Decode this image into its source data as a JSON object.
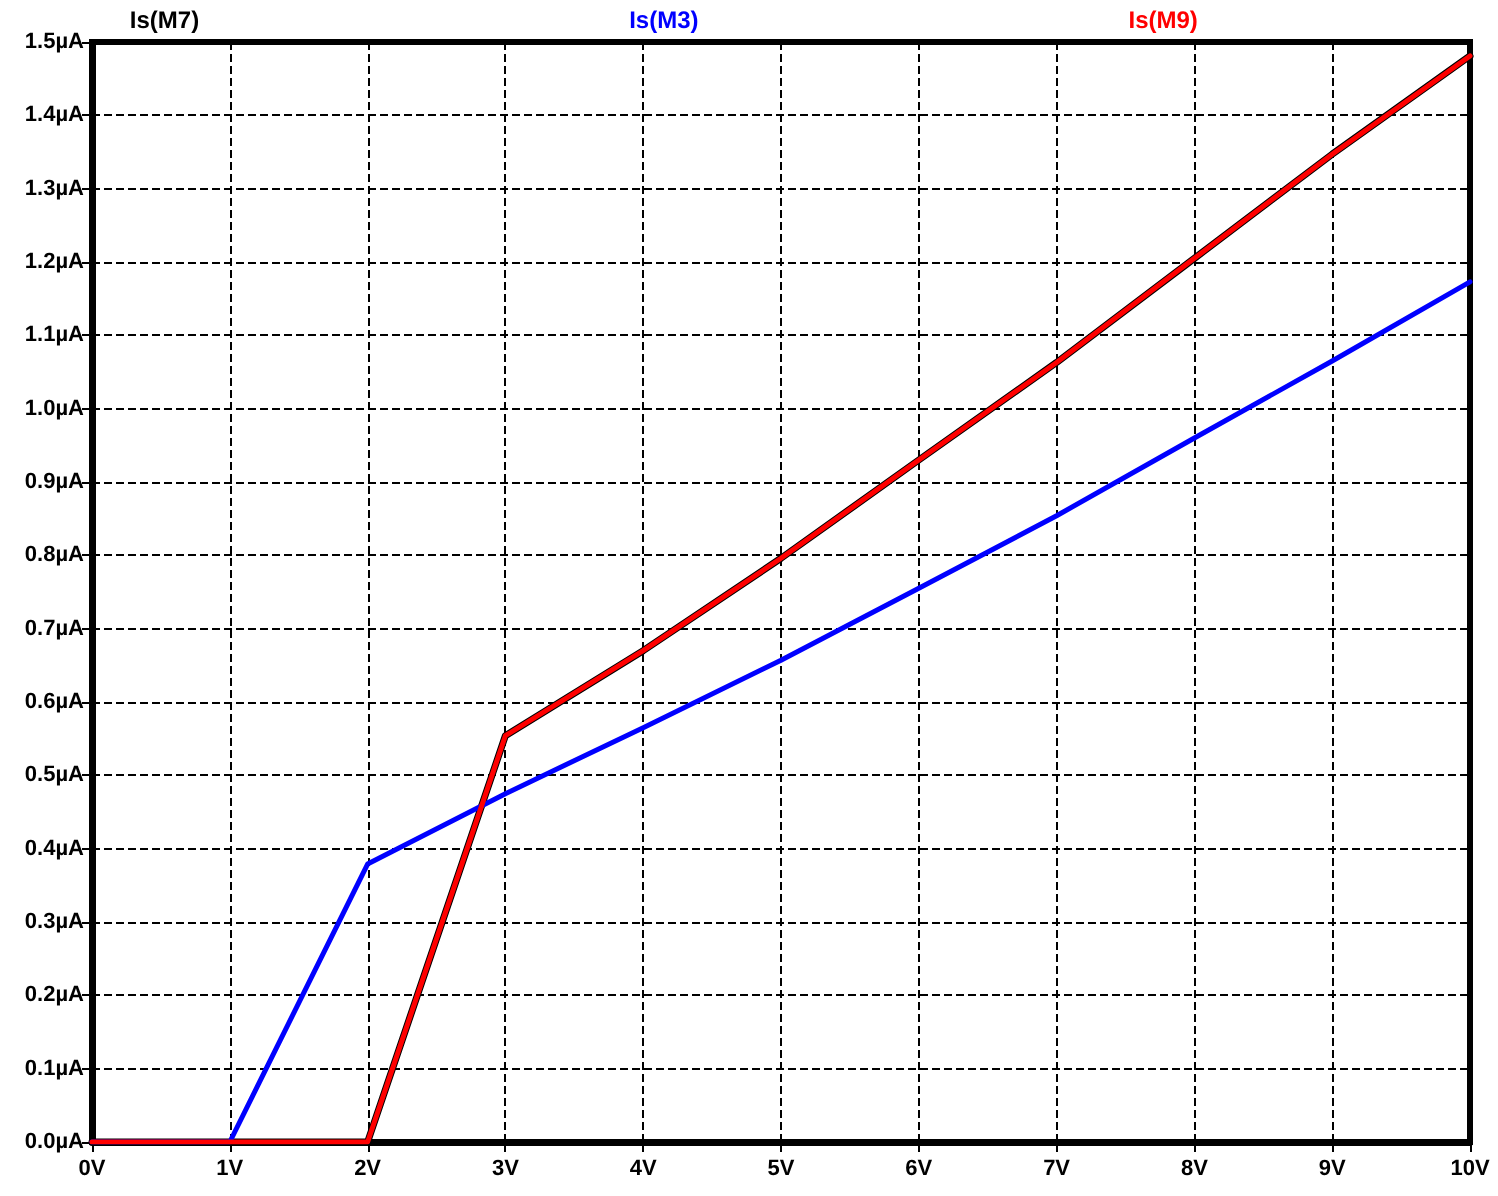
{
  "chart_data": {
    "type": "line",
    "x": [
      0,
      1,
      2,
      3,
      4,
      5,
      6,
      7,
      8,
      9,
      10
    ],
    "series": [
      {
        "name": "Is(M7)",
        "color": "#000000",
        "values": [
          0,
          0,
          0,
          0.554,
          0.67,
          0.796,
          0.93,
          1.063,
          1.205,
          1.347,
          1.481
        ]
      },
      {
        "name": "Is(M3)",
        "color": "#0000ff",
        "values": [
          0,
          0,
          0.379,
          0.475,
          0.565,
          0.657,
          0.755,
          0.854,
          0.96,
          1.065,
          1.173
        ]
      },
      {
        "name": "Is(M9)",
        "color": "#ff0000",
        "values": [
          0,
          0,
          0,
          0.554,
          0.67,
          0.796,
          0.93,
          1.063,
          1.205,
          1.347,
          1.481
        ]
      }
    ],
    "xlim": [
      0,
      10
    ],
    "xticks": [
      {
        "value": 0,
        "label": "0V"
      },
      {
        "value": 1,
        "label": "1V"
      },
      {
        "value": 2,
        "label": "2V"
      },
      {
        "value": 3,
        "label": "3V"
      },
      {
        "value": 4,
        "label": "4V"
      },
      {
        "value": 5,
        "label": "5V"
      },
      {
        "value": 6,
        "label": "6V"
      },
      {
        "value": 7,
        "label": "7V"
      },
      {
        "value": 8,
        "label": "8V"
      },
      {
        "value": 9,
        "label": "9V"
      },
      {
        "value": 10,
        "label": "10V"
      }
    ],
    "ylim": [
      0,
      1.5
    ],
    "yticks": [
      {
        "value": 0,
        "label": "0.0µA"
      },
      {
        "value": 0.1,
        "label": "0.1µA"
      },
      {
        "value": 0.2,
        "label": "0.2µA"
      },
      {
        "value": 0.3,
        "label": "0.3µA"
      },
      {
        "value": 0.4,
        "label": "0.4µA"
      },
      {
        "value": 0.5,
        "label": "0.5µA"
      },
      {
        "value": 0.6,
        "label": "0.6µA"
      },
      {
        "value": 0.7,
        "label": "0.7µA"
      },
      {
        "value": 0.8,
        "label": "0.8µA"
      },
      {
        "value": 0.9,
        "label": "0.9µA"
      },
      {
        "value": 1.0,
        "label": "1.0µA"
      },
      {
        "value": 1.1,
        "label": "1.1µA"
      },
      {
        "value": 1.2,
        "label": "1.2µA"
      },
      {
        "value": 1.3,
        "label": "1.3µA"
      },
      {
        "value": 1.4,
        "label": "1.4µA"
      },
      {
        "value": 1.5,
        "label": "1.5µA"
      }
    ],
    "grid": true,
    "legend": "top",
    "marker": "none",
    "line_style": "solid"
  }
}
